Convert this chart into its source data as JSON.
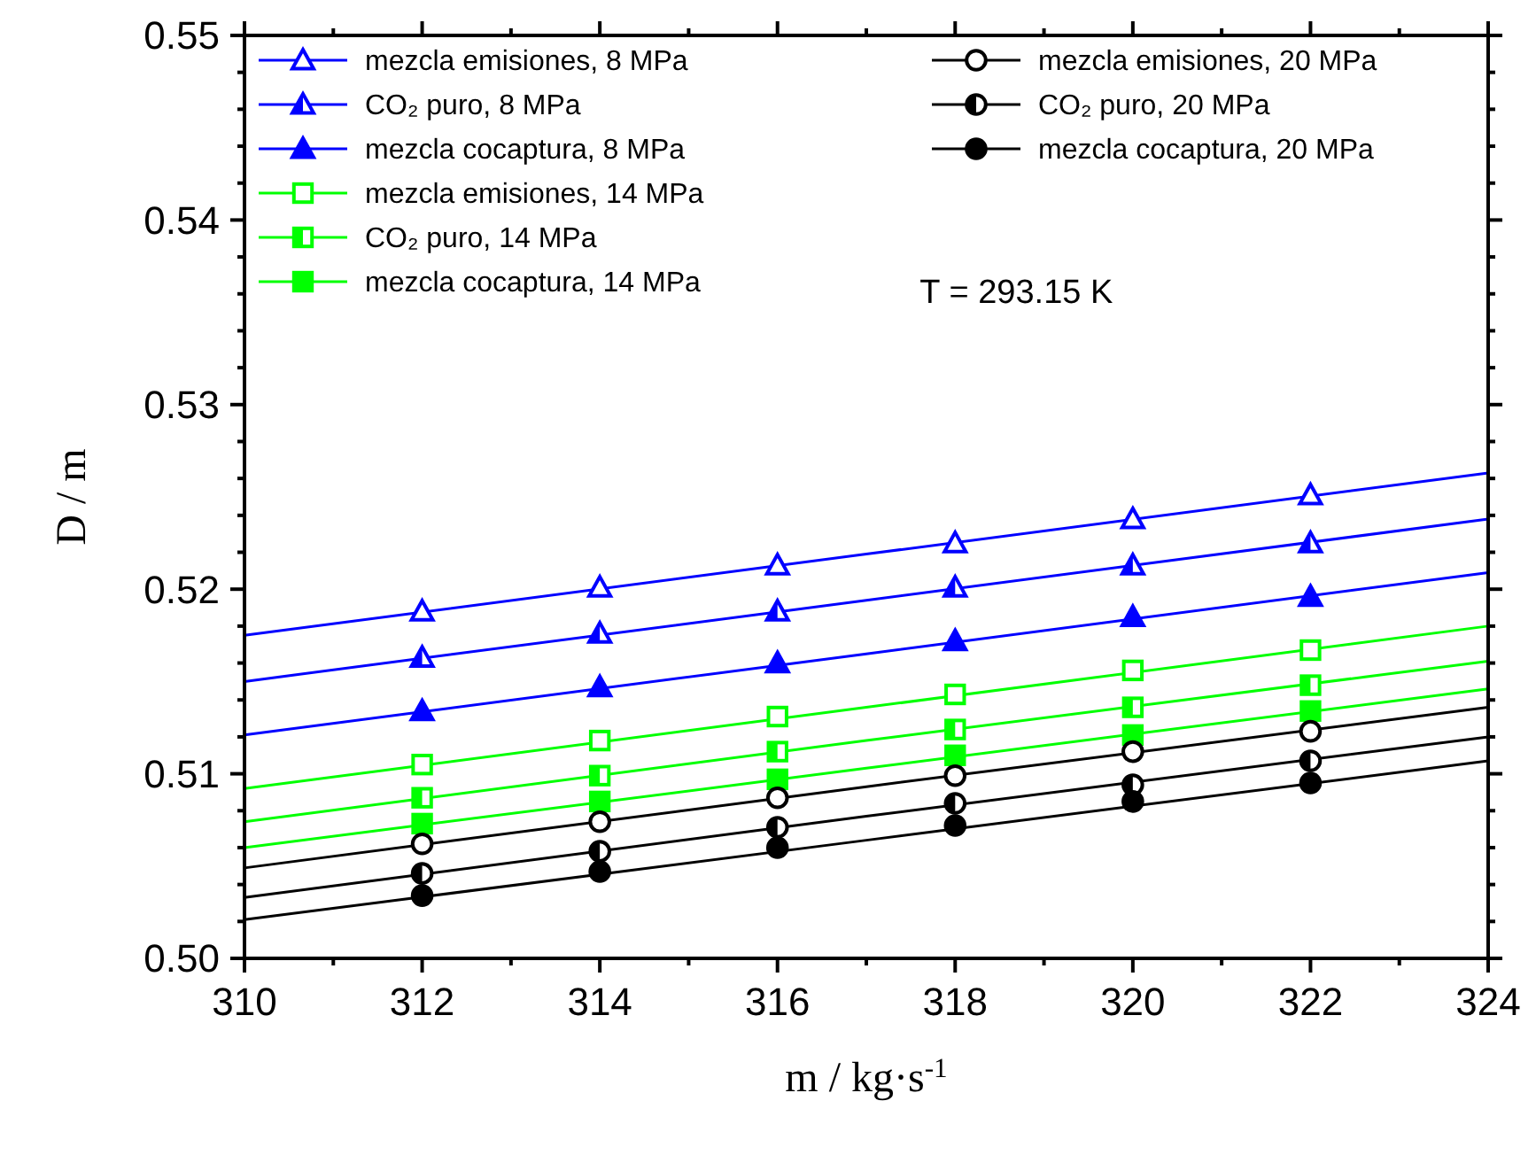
{
  "chart_data": {
    "type": "scatter",
    "xlabel": "m / kg·s$^{-1}$",
    "ylabel": "D / m",
    "annotations": [
      "T = 293.15 K"
    ],
    "x": [
      312,
      314,
      316,
      318,
      320,
      322
    ],
    "xlim": [
      310,
      324
    ],
    "xticks": [
      310,
      312,
      314,
      316,
      318,
      320,
      322,
      324
    ],
    "ylim": [
      0.5,
      0.55
    ],
    "yticks": [
      {
        "value": 0.5,
        "label": "0.50"
      },
      {
        "value": 0.51,
        "label": "0.51"
      },
      {
        "value": 0.52,
        "label": "0.52"
      },
      {
        "value": 0.53,
        "label": "0.53"
      },
      {
        "value": 0.54,
        "label": "0.54"
      },
      {
        "value": 0.55,
        "label": "0.55"
      }
    ],
    "legend": "top",
    "grid": false,
    "series": [
      {
        "name": "mezcla emisiones, 8 MPa",
        "color": "#0000ff",
        "marker": "triangle",
        "values": [
          0.5188,
          0.5201,
          0.5213,
          0.5225,
          0.5238,
          0.5251
        ]
      },
      {
        "name": "CO₂ puro, 8 MPa",
        "color": "#0000ff",
        "marker": "triangle",
        "values": [
          0.5163,
          0.5176,
          0.5188,
          0.5201,
          0.5213,
          0.5225
        ]
      },
      {
        "name": "mezcla cocaptura, 8 MPa",
        "color": "#0000ff",
        "marker": "triangle",
        "values": [
          0.5134,
          0.5147,
          0.516,
          0.5172,
          0.5185,
          0.5196
        ]
      },
      {
        "name": "mezcla emisiones, 14 MPa",
        "color": "#00ff00",
        "marker": "square",
        "values": [
          0.5105,
          0.5118,
          0.5131,
          0.5143,
          0.5156,
          0.5167
        ]
      },
      {
        "name": "CO₂ puro, 14 MPa",
        "color": "#00ff00",
        "marker": "square",
        "values": [
          0.5087,
          0.5099,
          0.5112,
          0.5124,
          0.5136,
          0.5148
        ]
      },
      {
        "name": "mezcla cocaptura, 14 MPa",
        "color": "#00ff00",
        "marker": "square",
        "values": [
          0.5073,
          0.5085,
          0.5097,
          0.511,
          0.5121,
          0.5134
        ]
      },
      {
        "name": "mezcla emisiones, 20 MPa",
        "color": "#000000",
        "marker": "circle",
        "values": [
          0.5062,
          0.5074,
          0.5087,
          0.5099,
          0.5112,
          0.5123
        ]
      },
      {
        "name": "CO₂ puro, 20 MPa",
        "color": "#000000",
        "marker": "circle",
        "values": [
          0.5046,
          0.5058,
          0.5071,
          0.5084,
          0.5094,
          0.5107
        ]
      },
      {
        "name": "mezcla cocaptura, 20 MPa",
        "color": "#000000",
        "marker": "circle",
        "values": [
          0.5034,
          0.5047,
          0.506,
          0.5072,
          0.5085,
          0.5095
        ]
      },
      {
        "type": "line",
        "color": "#0000ff",
        "x": [
          310,
          317,
          324
        ],
        "values": [
          0.5175,
          0.5219,
          0.5263
        ]
      },
      {
        "type": "line",
        "color": "#0000ff",
        "x": [
          310,
          317,
          324
        ],
        "values": [
          0.515,
          0.5194,
          0.5238
        ]
      },
      {
        "type": "line",
        "color": "#0000ff",
        "x": [
          310,
          317,
          324
        ],
        "values": [
          0.5121,
          0.5165,
          0.5209
        ]
      },
      {
        "type": "line",
        "color": "#00ff00",
        "x": [
          310,
          317,
          324
        ],
        "values": [
          0.5092,
          0.5136,
          0.518
        ]
      },
      {
        "type": "line",
        "color": "#00ff00",
        "x": [
          310,
          317,
          324
        ],
        "values": [
          0.5074,
          0.5118,
          0.5161
        ]
      },
      {
        "type": "line",
        "color": "#00ff00",
        "x": [
          310,
          317,
          324
        ],
        "values": [
          0.506,
          0.5103,
          0.5146
        ]
      },
      {
        "type": "line",
        "color": "#000000",
        "x": [
          310,
          317,
          324
        ],
        "values": [
          0.5049,
          0.5093,
          0.5136
        ]
      },
      {
        "type": "line",
        "color": "#000000",
        "x": [
          310,
          317,
          324
        ],
        "values": [
          0.5033,
          0.5077,
          0.512
        ]
      },
      {
        "type": "line",
        "color": "#000000",
        "x": [
          310,
          317,
          324
        ],
        "values": [
          0.5021,
          0.5064,
          0.5107
        ]
      }
    ]
  }
}
